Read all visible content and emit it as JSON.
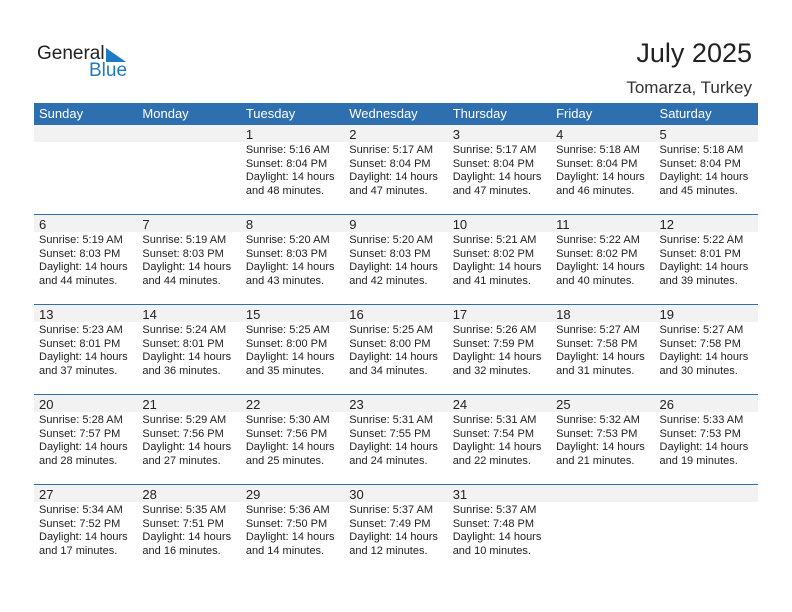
{
  "logo": {
    "line1": "General",
    "line2": "Blue"
  },
  "title": "July 2025",
  "location": "Tomarza, Turkey",
  "weekdays": [
    "Sunday",
    "Monday",
    "Tuesday",
    "Wednesday",
    "Thursday",
    "Friday",
    "Saturday"
  ],
  "weeks": [
    [
      null,
      null,
      {
        "day": "1",
        "sunrise": "Sunrise: 5:16 AM",
        "sunset": "Sunset: 8:04 PM",
        "daylight1": "Daylight: 14 hours",
        "daylight2": "and 48 minutes."
      },
      {
        "day": "2",
        "sunrise": "Sunrise: 5:17 AM",
        "sunset": "Sunset: 8:04 PM",
        "daylight1": "Daylight: 14 hours",
        "daylight2": "and 47 minutes."
      },
      {
        "day": "3",
        "sunrise": "Sunrise: 5:17 AM",
        "sunset": "Sunset: 8:04 PM",
        "daylight1": "Daylight: 14 hours",
        "daylight2": "and 47 minutes."
      },
      {
        "day": "4",
        "sunrise": "Sunrise: 5:18 AM",
        "sunset": "Sunset: 8:04 PM",
        "daylight1": "Daylight: 14 hours",
        "daylight2": "and 46 minutes."
      },
      {
        "day": "5",
        "sunrise": "Sunrise: 5:18 AM",
        "sunset": "Sunset: 8:04 PM",
        "daylight1": "Daylight: 14 hours",
        "daylight2": "and 45 minutes."
      }
    ],
    [
      {
        "day": "6",
        "sunrise": "Sunrise: 5:19 AM",
        "sunset": "Sunset: 8:03 PM",
        "daylight1": "Daylight: 14 hours",
        "daylight2": "and 44 minutes."
      },
      {
        "day": "7",
        "sunrise": "Sunrise: 5:19 AM",
        "sunset": "Sunset: 8:03 PM",
        "daylight1": "Daylight: 14 hours",
        "daylight2": "and 44 minutes."
      },
      {
        "day": "8",
        "sunrise": "Sunrise: 5:20 AM",
        "sunset": "Sunset: 8:03 PM",
        "daylight1": "Daylight: 14 hours",
        "daylight2": "and 43 minutes."
      },
      {
        "day": "9",
        "sunrise": "Sunrise: 5:20 AM",
        "sunset": "Sunset: 8:03 PM",
        "daylight1": "Daylight: 14 hours",
        "daylight2": "and 42 minutes."
      },
      {
        "day": "10",
        "sunrise": "Sunrise: 5:21 AM",
        "sunset": "Sunset: 8:02 PM",
        "daylight1": "Daylight: 14 hours",
        "daylight2": "and 41 minutes."
      },
      {
        "day": "11",
        "sunrise": "Sunrise: 5:22 AM",
        "sunset": "Sunset: 8:02 PM",
        "daylight1": "Daylight: 14 hours",
        "daylight2": "and 40 minutes."
      },
      {
        "day": "12",
        "sunrise": "Sunrise: 5:22 AM",
        "sunset": "Sunset: 8:01 PM",
        "daylight1": "Daylight: 14 hours",
        "daylight2": "and 39 minutes."
      }
    ],
    [
      {
        "day": "13",
        "sunrise": "Sunrise: 5:23 AM",
        "sunset": "Sunset: 8:01 PM",
        "daylight1": "Daylight: 14 hours",
        "daylight2": "and 37 minutes."
      },
      {
        "day": "14",
        "sunrise": "Sunrise: 5:24 AM",
        "sunset": "Sunset: 8:01 PM",
        "daylight1": "Daylight: 14 hours",
        "daylight2": "and 36 minutes."
      },
      {
        "day": "15",
        "sunrise": "Sunrise: 5:25 AM",
        "sunset": "Sunset: 8:00 PM",
        "daylight1": "Daylight: 14 hours",
        "daylight2": "and 35 minutes."
      },
      {
        "day": "16",
        "sunrise": "Sunrise: 5:25 AM",
        "sunset": "Sunset: 8:00 PM",
        "daylight1": "Daylight: 14 hours",
        "daylight2": "and 34 minutes."
      },
      {
        "day": "17",
        "sunrise": "Sunrise: 5:26 AM",
        "sunset": "Sunset: 7:59 PM",
        "daylight1": "Daylight: 14 hours",
        "daylight2": "and 32 minutes."
      },
      {
        "day": "18",
        "sunrise": "Sunrise: 5:27 AM",
        "sunset": "Sunset: 7:58 PM",
        "daylight1": "Daylight: 14 hours",
        "daylight2": "and 31 minutes."
      },
      {
        "day": "19",
        "sunrise": "Sunrise: 5:27 AM",
        "sunset": "Sunset: 7:58 PM",
        "daylight1": "Daylight: 14 hours",
        "daylight2": "and 30 minutes."
      }
    ],
    [
      {
        "day": "20",
        "sunrise": "Sunrise: 5:28 AM",
        "sunset": "Sunset: 7:57 PM",
        "daylight1": "Daylight: 14 hours",
        "daylight2": "and 28 minutes."
      },
      {
        "day": "21",
        "sunrise": "Sunrise: 5:29 AM",
        "sunset": "Sunset: 7:56 PM",
        "daylight1": "Daylight: 14 hours",
        "daylight2": "and 27 minutes."
      },
      {
        "day": "22",
        "sunrise": "Sunrise: 5:30 AM",
        "sunset": "Sunset: 7:56 PM",
        "daylight1": "Daylight: 14 hours",
        "daylight2": "and 25 minutes."
      },
      {
        "day": "23",
        "sunrise": "Sunrise: 5:31 AM",
        "sunset": "Sunset: 7:55 PM",
        "daylight1": "Daylight: 14 hours",
        "daylight2": "and 24 minutes."
      },
      {
        "day": "24",
        "sunrise": "Sunrise: 5:31 AM",
        "sunset": "Sunset: 7:54 PM",
        "daylight1": "Daylight: 14 hours",
        "daylight2": "and 22 minutes."
      },
      {
        "day": "25",
        "sunrise": "Sunrise: 5:32 AM",
        "sunset": "Sunset: 7:53 PM",
        "daylight1": "Daylight: 14 hours",
        "daylight2": "and 21 minutes."
      },
      {
        "day": "26",
        "sunrise": "Sunrise: 5:33 AM",
        "sunset": "Sunset: 7:53 PM",
        "daylight1": "Daylight: 14 hours",
        "daylight2": "and 19 minutes."
      }
    ],
    [
      {
        "day": "27",
        "sunrise": "Sunrise: 5:34 AM",
        "sunset": "Sunset: 7:52 PM",
        "daylight1": "Daylight: 14 hours",
        "daylight2": "and 17 minutes."
      },
      {
        "day": "28",
        "sunrise": "Sunrise: 5:35 AM",
        "sunset": "Sunset: 7:51 PM",
        "daylight1": "Daylight: 14 hours",
        "daylight2": "and 16 minutes."
      },
      {
        "day": "29",
        "sunrise": "Sunrise: 5:36 AM",
        "sunset": "Sunset: 7:50 PM",
        "daylight1": "Daylight: 14 hours",
        "daylight2": "and 14 minutes."
      },
      {
        "day": "30",
        "sunrise": "Sunrise: 5:37 AM",
        "sunset": "Sunset: 7:49 PM",
        "daylight1": "Daylight: 14 hours",
        "daylight2": "and 12 minutes."
      },
      {
        "day": "31",
        "sunrise": "Sunrise: 5:37 AM",
        "sunset": "Sunset: 7:48 PM",
        "daylight1": "Daylight: 14 hours",
        "daylight2": "and 10 minutes."
      },
      null,
      null
    ]
  ]
}
